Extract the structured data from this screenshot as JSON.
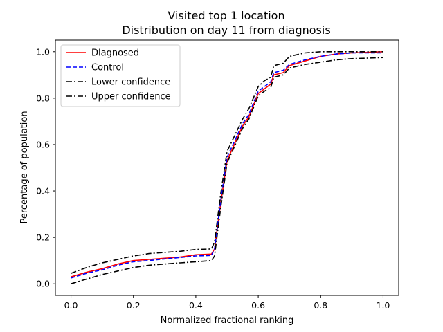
{
  "chart_data": {
    "type": "line",
    "title": "Visited top 1 location",
    "subtitle": "Distribution on day 11 from diagnosis",
    "xlabel": "Normalized fractional ranking",
    "ylabel": "Percentage of population",
    "xlim": [
      -0.05,
      1.05
    ],
    "ylim": [
      -0.05,
      1.05
    ],
    "xticks": [
      "0.0",
      "0.2",
      "0.4",
      "0.6",
      "0.8",
      "1.0"
    ],
    "yticks": [
      "0.0",
      "0.2",
      "0.4",
      "0.6",
      "0.8",
      "1.0"
    ],
    "grid": false,
    "legend_position": "upper-left",
    "x": [
      0.0,
      0.05,
      0.1,
      0.15,
      0.2,
      0.25,
      0.3,
      0.35,
      0.4,
      0.45,
      0.46,
      0.48,
      0.5,
      0.55,
      0.57,
      0.6,
      0.62,
      0.64,
      0.65,
      0.68,
      0.7,
      0.75,
      0.8,
      0.85,
      0.9,
      1.0
    ],
    "series": [
      {
        "name": "Diagnosed",
        "color": "#ff0000",
        "dash": "solid",
        "values": [
          0.03,
          0.05,
          0.065,
          0.085,
          0.1,
          0.105,
          0.11,
          0.115,
          0.125,
          0.128,
          0.15,
          0.35,
          0.53,
          0.68,
          0.72,
          0.82,
          0.84,
          0.86,
          0.9,
          0.91,
          0.94,
          0.96,
          0.98,
          0.99,
          0.995,
          1.0
        ]
      },
      {
        "name": "Control",
        "color": "#0000ff",
        "dash": "dashed",
        "values": [
          0.025,
          0.045,
          0.06,
          0.08,
          0.095,
          0.1,
          0.107,
          0.113,
          0.12,
          0.122,
          0.15,
          0.36,
          0.545,
          0.69,
          0.73,
          0.83,
          0.85,
          0.87,
          0.91,
          0.92,
          0.945,
          0.965,
          0.98,
          0.99,
          0.995,
          0.995
        ]
      },
      {
        "name": "Lower confidence",
        "color": "#000000",
        "dash": "dashdot",
        "values": [
          0.0,
          0.02,
          0.04,
          0.055,
          0.07,
          0.08,
          0.085,
          0.09,
          0.095,
          0.1,
          0.12,
          0.33,
          0.52,
          0.67,
          0.71,
          0.81,
          0.83,
          0.845,
          0.89,
          0.9,
          0.93,
          0.945,
          0.955,
          0.965,
          0.97,
          0.975
        ]
      },
      {
        "name": "Upper confidence",
        "color": "#000000",
        "dash": "dashdot",
        "values": [
          0.045,
          0.07,
          0.09,
          0.105,
          0.12,
          0.13,
          0.135,
          0.14,
          0.148,
          0.15,
          0.18,
          0.39,
          0.57,
          0.71,
          0.755,
          0.85,
          0.875,
          0.89,
          0.94,
          0.95,
          0.98,
          0.995,
          1.0,
          1.0,
          1.0,
          1.0
        ]
      }
    ]
  }
}
